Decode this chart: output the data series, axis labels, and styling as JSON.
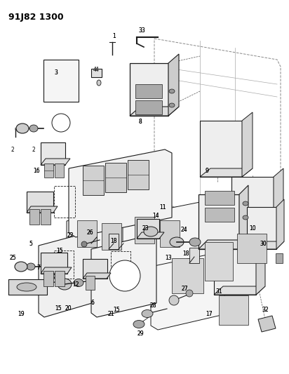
{
  "title": "91J82 1300",
  "bg_color": "#ffffff",
  "fig_width": 4.12,
  "fig_height": 5.33,
  "dpi": 100,
  "title_fontsize": 9,
  "title_fontweight": "bold",
  "lc": "#1a1a1a",
  "fc_light": "#f0f0f0",
  "fc_mid": "#d8d8d8",
  "fc_dark": "#bbbbbb",
  "label_fs": 5.5
}
